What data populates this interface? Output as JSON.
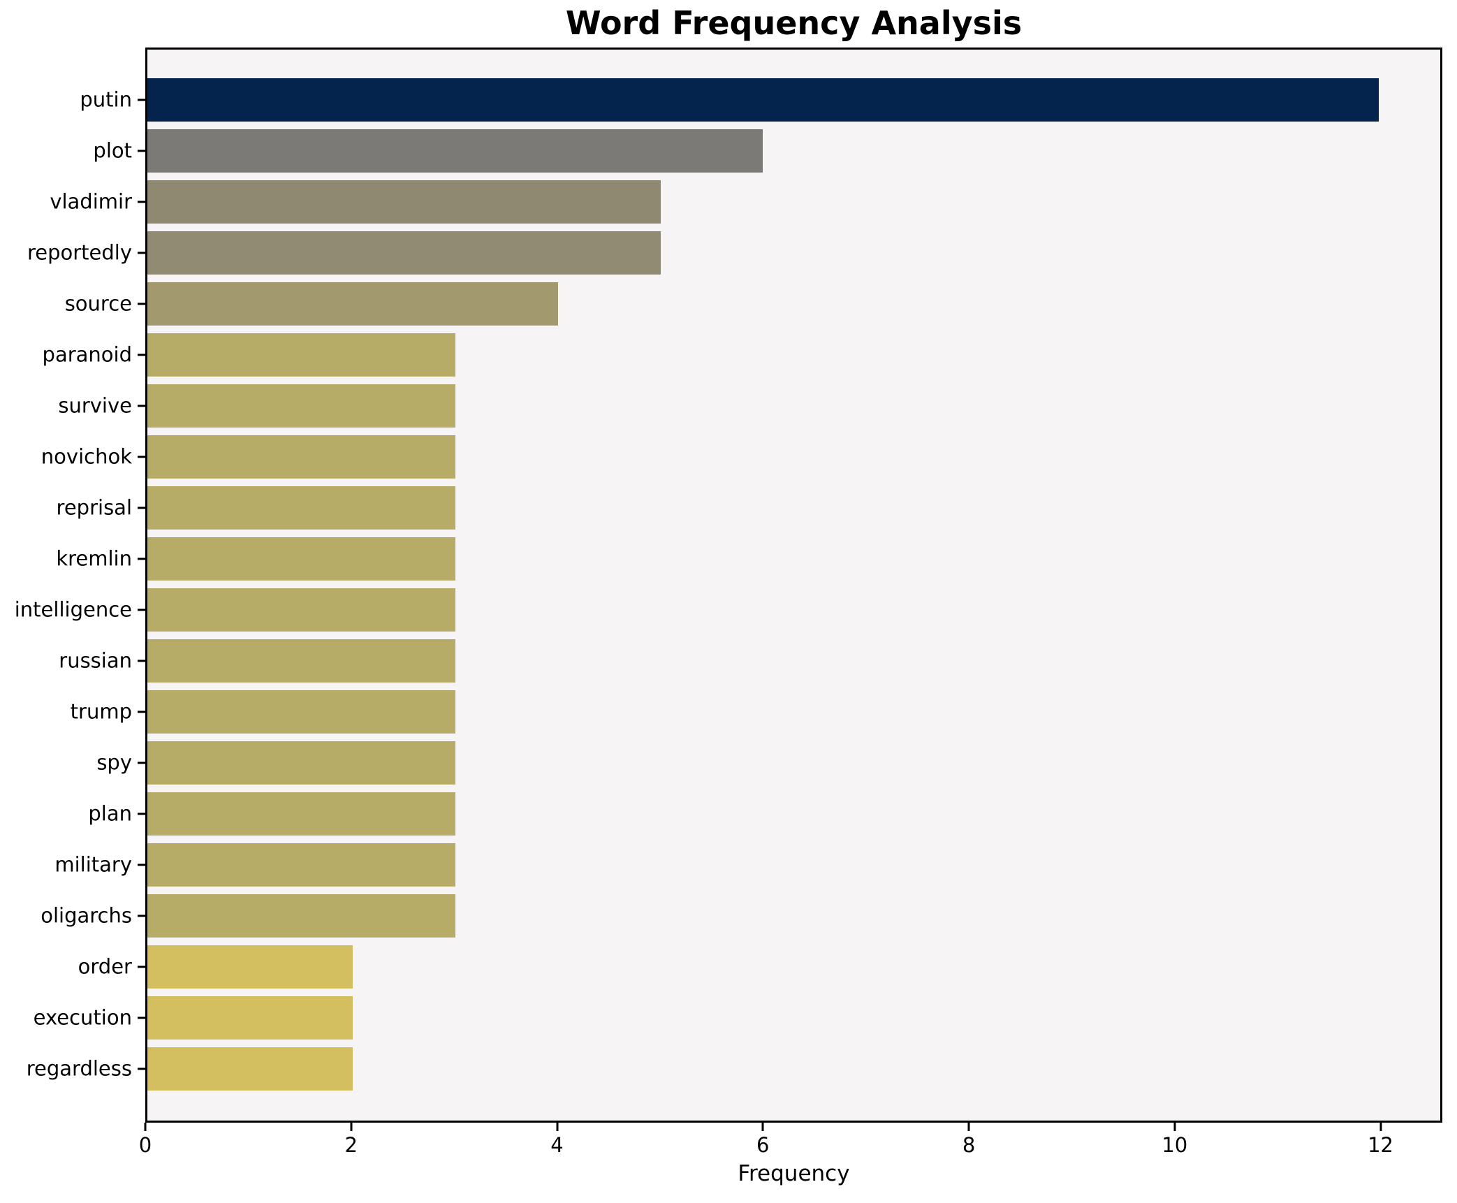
{
  "figure": {
    "title": "Word Frequency Analysis",
    "xlabel": "Frequency"
  },
  "chart_data": {
    "type": "bar",
    "orientation": "horizontal",
    "title": "Word Frequency Analysis",
    "xlabel": "Frequency",
    "ylabel": "",
    "categories": [
      "putin",
      "plot",
      "vladimir",
      "reportedly",
      "source",
      "paranoid",
      "survive",
      "novichok",
      "reprisal",
      "kremlin",
      "intelligence",
      "russian",
      "trump",
      "spy",
      "plan",
      "military",
      "oligarchs",
      "order",
      "execution",
      "regardless"
    ],
    "values": [
      12,
      6,
      5,
      5,
      4,
      3,
      3,
      3,
      3,
      3,
      3,
      3,
      3,
      3,
      3,
      3,
      3,
      2,
      2,
      2
    ],
    "bar_colors": [
      "#04234d",
      "#7b7a76",
      "#908971",
      "#928b74",
      "#a29a6e",
      "#b7ab68",
      "#b7ab68",
      "#b7ab68",
      "#b7ab68",
      "#b7ab68",
      "#b7ab68",
      "#b7ab68",
      "#b7ab68",
      "#b7ab68",
      "#b7ab68",
      "#b7ab68",
      "#b7ab68",
      "#d3bf60",
      "#d3bf60",
      "#d3bf60"
    ],
    "xticks": [
      0,
      2,
      4,
      6,
      8,
      10,
      12
    ],
    "xlim": [
      0,
      12.6
    ],
    "grid": false,
    "legend": null,
    "plot_background": "#f6f4f5",
    "frame_color": "#000000"
  }
}
